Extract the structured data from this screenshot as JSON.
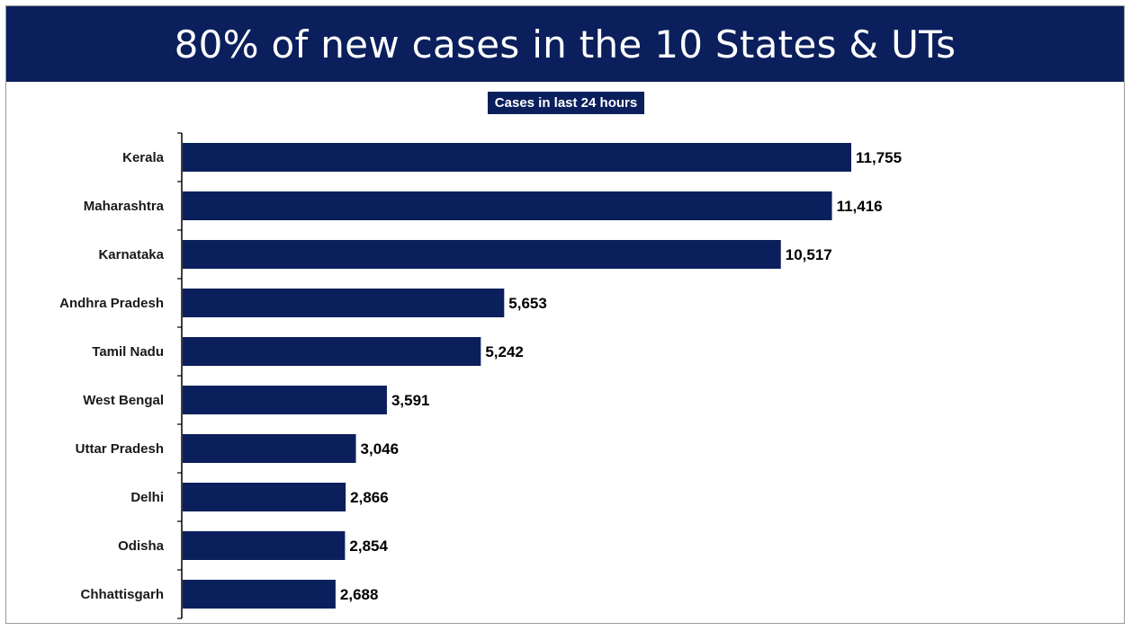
{
  "title": "80% of new cases in the 10 States & UTs",
  "subtitle": "Cases in last 24 hours",
  "colors": {
    "banner": "#0b1f5c",
    "bar": "#0b1f5c",
    "axis": "#000000"
  },
  "chart_data": {
    "type": "bar",
    "orientation": "horizontal",
    "title": "Cases in last 24 hours",
    "categories": [
      "Kerala",
      "Maharashtra",
      "Karnataka",
      "Andhra Pradesh",
      "Tamil Nadu",
      "West Bengal",
      "Uttar Pradesh",
      "Delhi",
      "Odisha",
      "Chhattisgarh"
    ],
    "values": [
      11755,
      11416,
      10517,
      5653,
      5242,
      3591,
      3046,
      2866,
      2854,
      2688
    ],
    "value_labels": [
      "11,755",
      "11,416",
      "10,517",
      "5,653",
      "5,242",
      "3,591",
      "3,046",
      "2,866",
      "2,854",
      "2,688"
    ],
    "xlim": [
      0,
      11755
    ],
    "grid": false,
    "legend": "none"
  }
}
